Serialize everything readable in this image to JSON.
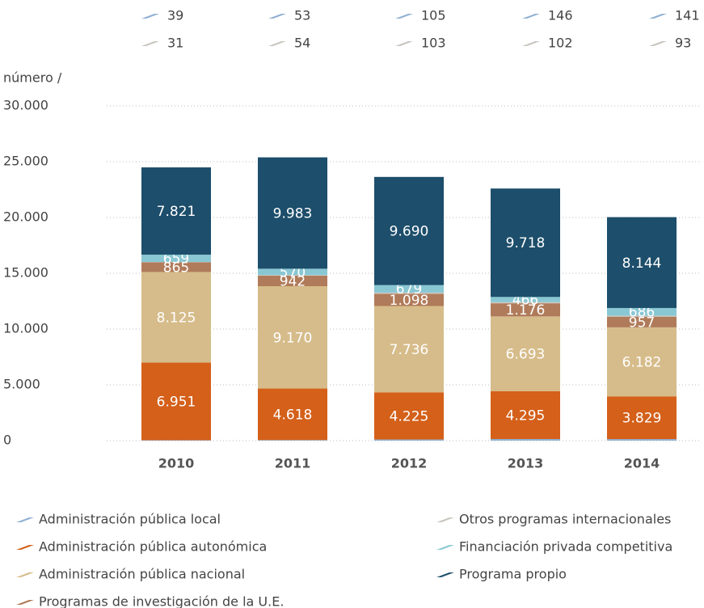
{
  "chart_data": {
    "type": "stacked_bar",
    "y_axis_label": "número  /",
    "categories": [
      "2010",
      "2011",
      "2012",
      "2013",
      "2014"
    ],
    "series": [
      {
        "name": "Administración pública local",
        "color": "#8fb0d3",
        "values": [
          39,
          53,
          105,
          146,
          141
        ]
      },
      {
        "name": "Administración pública autonómica",
        "color": "#d4601a",
        "values": [
          6951,
          4618,
          4225,
          4295,
          3829
        ],
        "value_labels": [
          "6.951",
          "4.618",
          "4.225",
          "4.295",
          "3.829"
        ]
      },
      {
        "name": "Administración pública nacional",
        "color": "#d6bc8a",
        "values": [
          8125,
          9170,
          7736,
          6693,
          6182
        ],
        "value_labels": [
          "8.125",
          "9.170",
          "7.736",
          "6.693",
          "6.182"
        ]
      },
      {
        "name": "Programas de investigación de la U.E.",
        "color": "#b07b5a",
        "values": [
          865,
          942,
          1098,
          1176,
          957
        ],
        "value_labels": [
          "865",
          "942",
          "1.098",
          "1.176",
          "957"
        ]
      },
      {
        "name": "Otros programas internacionales",
        "color": "#c8c5bd",
        "values": [
          31,
          54,
          103,
          102,
          93
        ]
      },
      {
        "name": "Financiación privada competitiva",
        "color": "#89c7d3",
        "values": [
          659,
          570,
          679,
          466,
          686
        ]
      },
      {
        "name": "Programa propio",
        "color": "#1d4e6b",
        "values": [
          7821,
          9983,
          9690,
          9718,
          8144
        ],
        "value_labels": [
          "7.821",
          "9.983",
          "9.690",
          "9.718",
          "8.144"
        ]
      }
    ],
    "ylim": [
      0,
      30000
    ],
    "yticks": [
      0,
      {
        "value": 5000,
        "label": "5.000"
      },
      {
        "value": 10000,
        "label": "10.000"
      },
      {
        "value": 15000,
        "label": "15.000"
      },
      {
        "value": 20000,
        "label": "20.000"
      },
      {
        "value": 25000,
        "label": "25.000"
      },
      {
        "value": 30000,
        "label": "30.000"
      }
    ],
    "grid": true
  }
}
